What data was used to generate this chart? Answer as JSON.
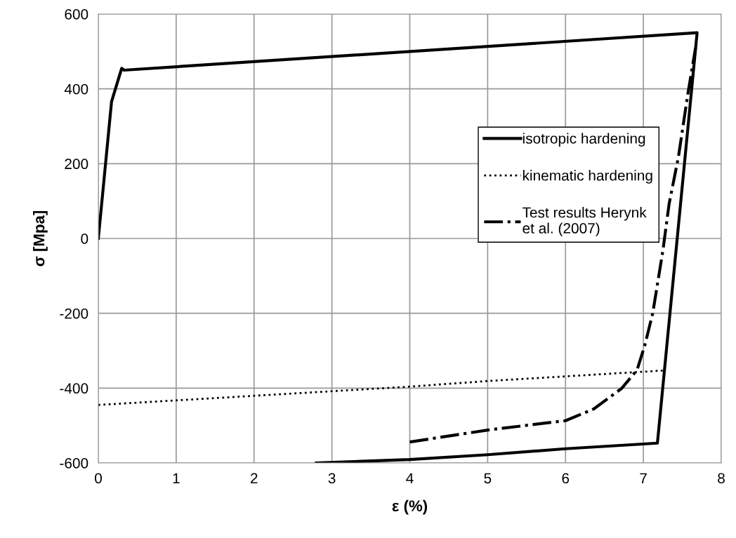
{
  "chart_data": {
    "type": "line",
    "xlabel": "ε (%)",
    "ylabel": "σ [Mpa]",
    "xlim": [
      0,
      8
    ],
    "xticks": [
      0,
      1,
      2,
      3,
      4,
      5,
      6,
      7,
      8
    ],
    "ylim": [
      -600,
      600
    ],
    "yticks": [
      -600,
      -400,
      -200,
      0,
      200,
      400,
      600
    ],
    "grid": true,
    "legend": "right",
    "marker": "none",
    "series": [
      {
        "name": "isotropic hardening",
        "color": "#000000",
        "line_style": "solid",
        "x": [
          0,
          0.17,
          0.3,
          0.33,
          7.69,
          7.18,
          6,
          5,
          4,
          2.8
        ],
        "values": [
          0,
          366,
          455,
          450,
          550,
          -547,
          -562,
          -578,
          -591,
          -600
        ]
      },
      {
        "name": "kinematic hardening",
        "color": "#000000",
        "line_style": "dotted",
        "x": [
          0,
          4,
          5,
          7.25
        ],
        "values": [
          -445,
          -396,
          -381,
          -353
        ]
      },
      {
        "name": "Test results Herynk et al. (2007)",
        "color": "#000000",
        "line_style": "dashdot",
        "x": [
          4,
          5,
          6,
          6.36,
          6.72,
          6.92,
          7.02,
          7.12,
          7.25,
          7.33,
          7.45,
          7.57,
          7.67
        ],
        "values": [
          -544,
          -512,
          -487,
          -456,
          -401,
          -351,
          -284,
          -200,
          -33,
          92,
          218,
          385,
          510
        ]
      }
    ]
  }
}
